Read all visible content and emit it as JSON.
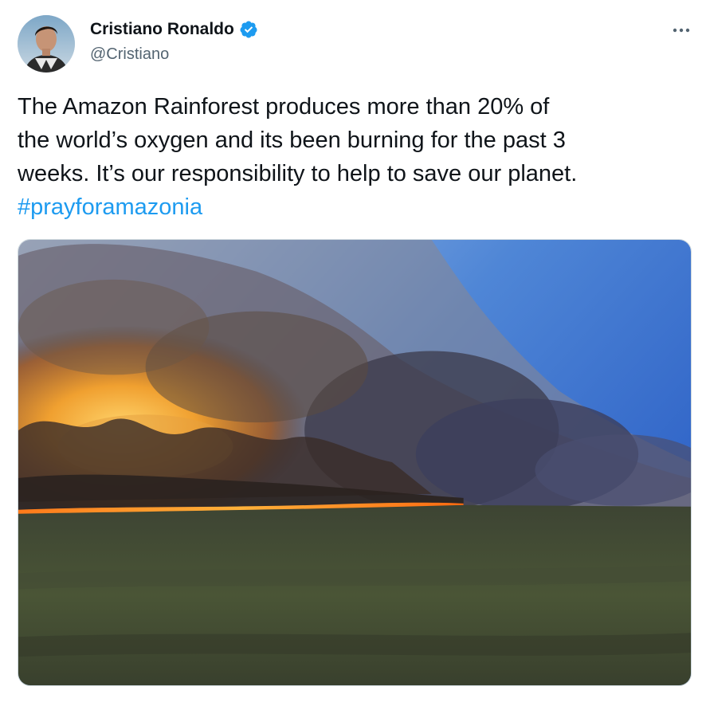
{
  "author": {
    "display_name": "Cristiano Ronaldo",
    "handle": "@Cristiano",
    "verified": true,
    "verified_color": "#1d9bf0",
    "icons": {
      "verified": "verified-badge-icon",
      "more": "more-options-icon"
    }
  },
  "tweet": {
    "text_lines": [
      "The Amazon Rainforest produces more than 20% of",
      "the world’s oxygen and its been burning for the past 3",
      "weeks. It’s our responsibility to help to save our planet."
    ],
    "hashtag": "#prayforamazonia",
    "hashtag_color": "#1d9bf0"
  },
  "colors": {
    "text": "#0f1419",
    "secondary": "#536471",
    "border": "#cfd9de"
  }
}
